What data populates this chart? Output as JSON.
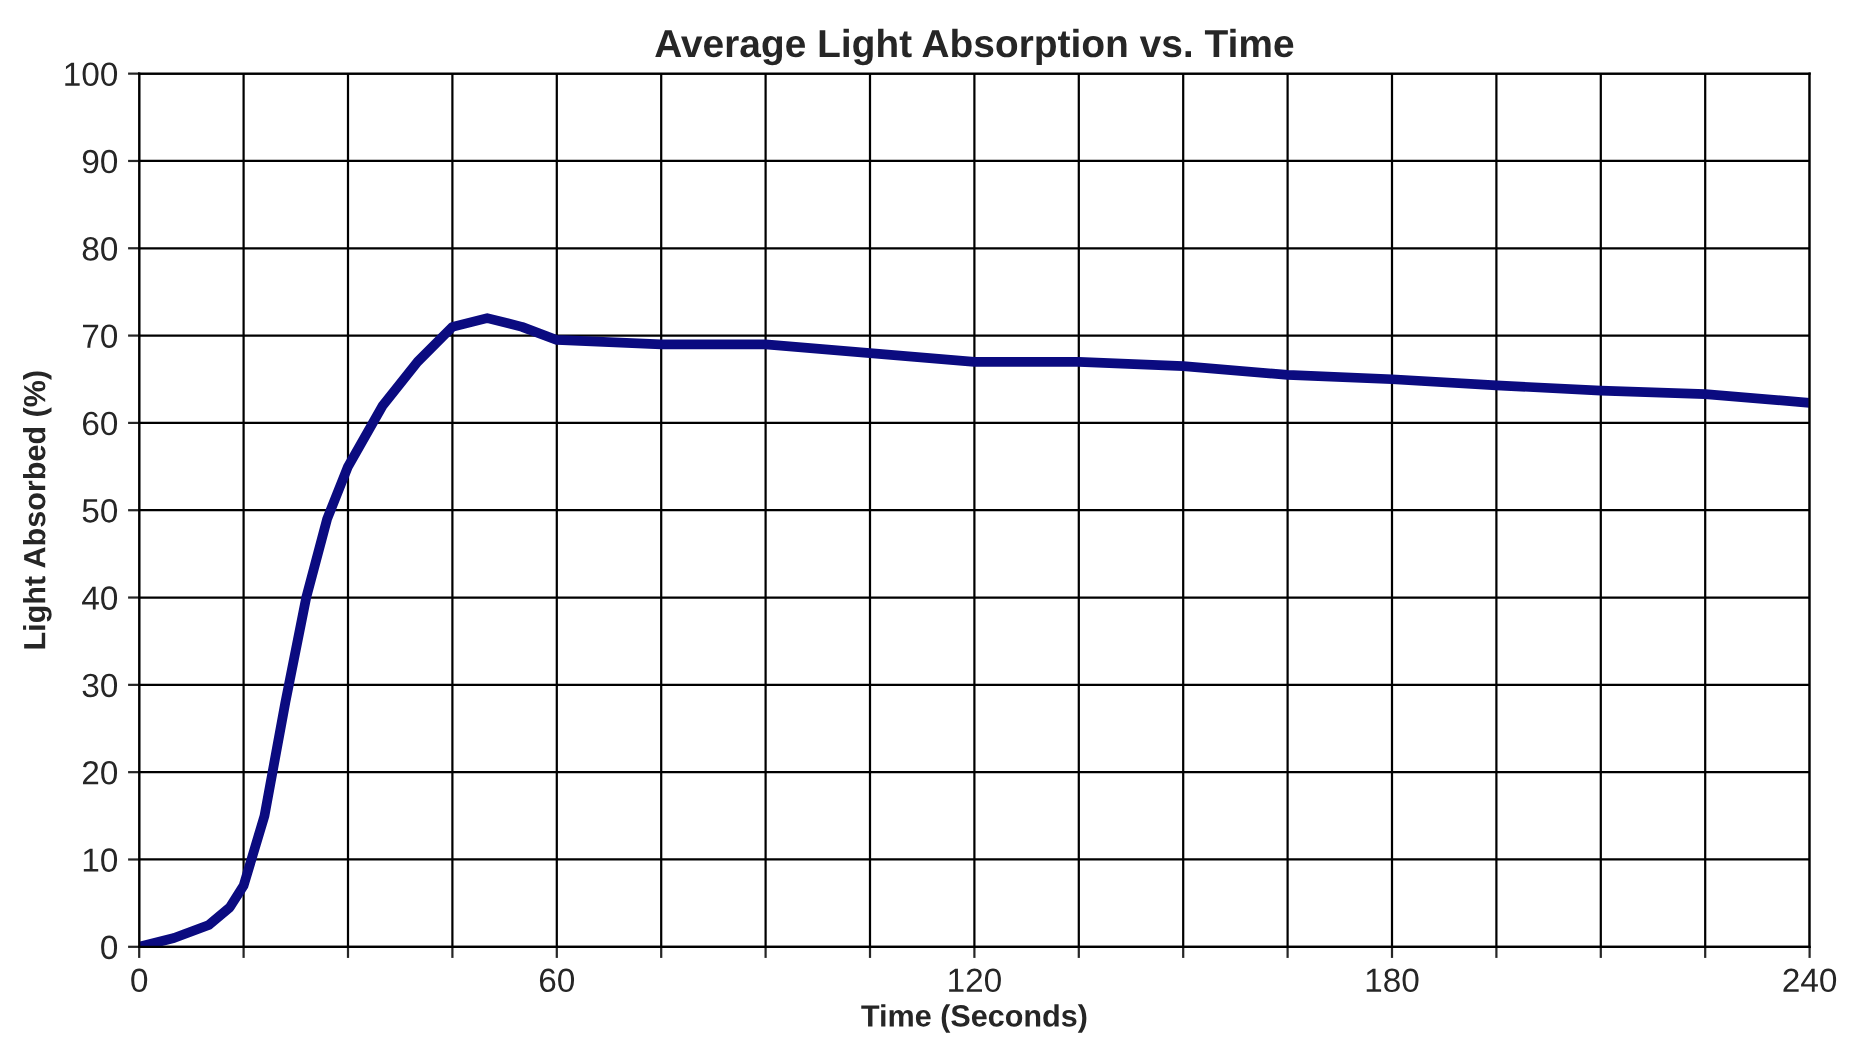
{
  "chart_data": {
    "type": "line",
    "title": "Average Light Absorption vs. Time",
    "xlabel": "Time (Seconds)",
    "ylabel": "Light Absorbed (%)",
    "x": [
      0,
      5,
      10,
      13,
      15,
      18,
      21,
      24,
      27,
      30,
      35,
      40,
      45,
      50,
      55,
      60,
      75,
      90,
      105,
      120,
      135,
      150,
      165,
      180,
      195,
      210,
      225,
      240
    ],
    "series": [
      {
        "color": "#0b0b80",
        "values": [
          0,
          1,
          2.5,
          4.5,
          7,
          15,
          28,
          40,
          49,
          55,
          62,
          67,
          71,
          72,
          71,
          69.5,
          69,
          69,
          68,
          67,
          67,
          66.5,
          65.5,
          65,
          64.3,
          63.7,
          63.3,
          62.3
        ]
      }
    ],
    "xlim": [
      0,
      240
    ],
    "ylim": [
      0,
      100
    ],
    "xticks": [
      0,
      {
        "value": 15,
        "label": null
      },
      {
        "value": 30,
        "label": null
      },
      {
        "value": 45,
        "label": null
      },
      60,
      {
        "value": 75,
        "label": null
      },
      {
        "value": 90,
        "label": null
      },
      {
        "value": 105,
        "label": null
      },
      120,
      {
        "value": 135,
        "label": null
      },
      {
        "value": 150,
        "label": null
      },
      {
        "value": 165,
        "label": null
      },
      180,
      {
        "value": 195,
        "label": null
      },
      {
        "value": 210,
        "label": null
      },
      {
        "value": 225,
        "label": null
      },
      240
    ],
    "yticks": [
      0,
      10,
      20,
      30,
      40,
      50,
      60,
      70,
      80,
      90,
      100
    ],
    "grid": true,
    "legend": false
  }
}
